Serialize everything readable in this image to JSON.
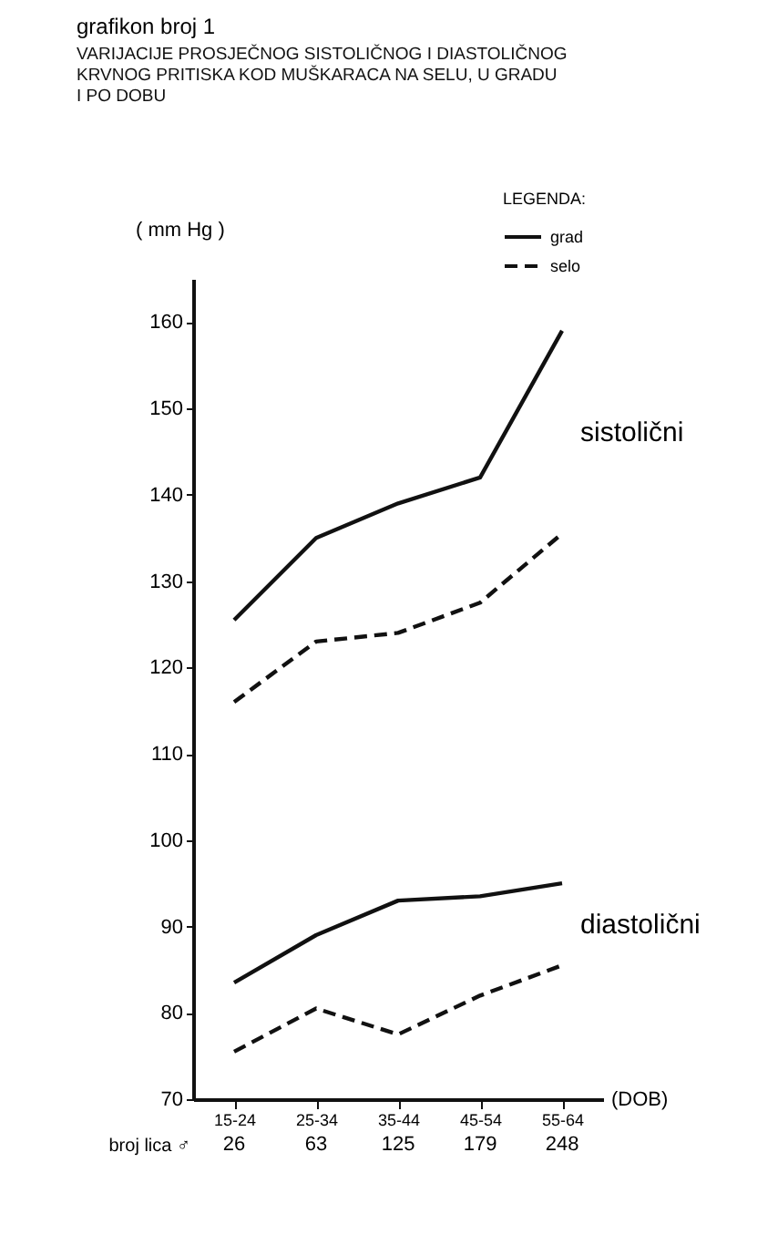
{
  "chart_data": [
    {
      "type": "line",
      "title": "grafikon broj 1",
      "subtitle": "VARIJACIJE PROSJEČNOG SISTOLIČNOG I DIASTOLIČNOG\nKRVNOG PRITISKA KOD MUŠKARACA NA SELU, U GRADU\nI PO DOBU",
      "ylabel": "( mm Hg )",
      "xlabel": "(DOB)",
      "legend_title": "LEGENDA:",
      "legend": "top right",
      "categories": [
        "15-24",
        "25-34",
        "35-44",
        "45-54",
        "55-64"
      ],
      "series": [
        {
          "name": "grad",
          "color": "#111111",
          "line_style": "solid",
          "values": [
            125.5,
            135,
            139,
            142,
            159
          ]
        },
        {
          "name": "selo",
          "color": "#111111",
          "line_style": "dashed",
          "values": [
            116,
            123,
            124,
            127.5,
            135.5
          ]
        },
        {
          "color": "#111111",
          "line_style": "solid",
          "values": [
            83.5,
            89,
            93,
            93.5,
            95
          ]
        },
        {
          "color": "#111111",
          "line_style": "dashed",
          "values": [
            75.5,
            80.5,
            77.5,
            82,
            85.5
          ]
        }
      ],
      "ylim": [
        70,
        165
      ],
      "yticks": [
        70,
        80,
        90,
        100,
        110,
        120,
        130,
        140,
        150,
        160
      ],
      "grid": false,
      "marker": "none",
      "annotations": [
        "sistolični",
        "diastolični"
      ]
    },
    {
      "type": "other",
      "ylabel": "broj lica ♂",
      "values": [
        26,
        63,
        125,
        179,
        248
      ],
      "data_labels": true
    }
  ]
}
